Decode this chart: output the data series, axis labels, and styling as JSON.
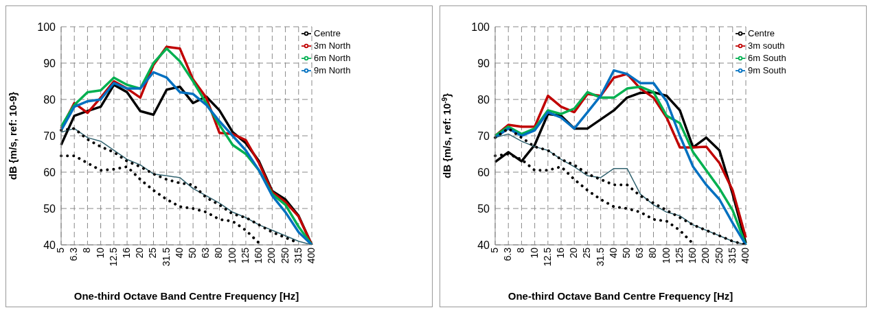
{
  "chart_data": [
    {
      "type": "line",
      "xlabel": "One-third Octave Band Centre Frequency [Hz]",
      "ylabel": "dB {m/s, ref: 10-9}",
      "categories": [
        "5",
        "6.3",
        "8",
        "10",
        "12.5",
        "16",
        "20",
        "25",
        "31.5",
        "40",
        "50",
        "63",
        "80",
        "100",
        "125",
        "160",
        "200",
        "250",
        "315",
        "400"
      ],
      "ylim": [
        40,
        100
      ],
      "yticks": [
        40,
        50,
        60,
        70,
        80,
        90,
        100
      ],
      "grid": true,
      "legend": "top right",
      "marker": "none",
      "series": [
        {
          "name": "Centre",
          "color": "#000000",
          "values": [
            67.5,
            75.5,
            76.8,
            78,
            84,
            82,
            76.8,
            75.8,
            82.7,
            83.5,
            79,
            80.8,
            77,
            71,
            68,
            63,
            54.8,
            52.5,
            48,
            40
          ]
        },
        {
          "name": "3m North",
          "color": "#c00000",
          "values": [
            72,
            79,
            76.3,
            80.5,
            85,
            83,
            80.5,
            89.5,
            94.5,
            94,
            85.5,
            80.5,
            70.8,
            70.5,
            68.8,
            62.5,
            54.5,
            51.8,
            47.8,
            40
          ]
        },
        {
          "name": "6m North",
          "color": "#00b050",
          "values": [
            72.5,
            78.5,
            82,
            82.5,
            86,
            84,
            83,
            90,
            94,
            90.5,
            85,
            79,
            73,
            67.5,
            65,
            60.5,
            54,
            51,
            45,
            40
          ]
        },
        {
          "name": "9m North",
          "color": "#0070c0",
          "values": [
            71.5,
            78,
            79.5,
            80,
            84.5,
            83,
            83,
            87.5,
            86,
            82,
            81.5,
            78.5,
            74,
            70,
            66,
            60.5,
            53.5,
            49,
            43.5,
            40
          ]
        },
        {
          "color": "#31626f",
          "line_style": "solid",
          "values": [
            71,
            72,
            69.5,
            68.5,
            66,
            63.5,
            62,
            59.5,
            59,
            58.5,
            55.5,
            53.5,
            51.5,
            49,
            47.5,
            45.5,
            44,
            42.5,
            41,
            40
          ]
        },
        {
          "color": "#000000",
          "line_style": "dotted",
          "values": [
            71.5,
            72,
            69,
            67,
            65.5,
            63,
            61.5,
            59.5,
            58,
            57,
            56.5,
            53,
            51,
            48.5,
            47.5,
            45.5,
            43.5,
            42,
            40.5,
            null
          ]
        },
        {
          "color": "#000000",
          "line_style": "dotted",
          "values": [
            64.5,
            64.5,
            62.5,
            60.5,
            60.8,
            61.5,
            58,
            55,
            52.5,
            50.5,
            50,
            49,
            47,
            46.5,
            44,
            40.5,
            null,
            null,
            null,
            null
          ]
        }
      ]
    },
    {
      "type": "line",
      "xlabel": "One-third Octave Band Centre Frequency [Hz]",
      "ylabel": "dB {m/s, ref: 10$^{-9}$}",
      "categories": [
        "5",
        "6.3",
        "8",
        "10",
        "12.5",
        "16",
        "20",
        "25",
        "31.5",
        "40",
        "50",
        "63",
        "80",
        "100",
        "125",
        "160",
        "200",
        "250",
        "315",
        "400"
      ],
      "ylim": [
        40,
        100
      ],
      "yticks": [
        40,
        50,
        60,
        70,
        80,
        90,
        100
      ],
      "grid": true,
      "legend": "top right",
      "marker": "none",
      "series": [
        {
          "name": "Centre",
          "color": "#000000",
          "values": [
            62.8,
            65.5,
            63,
            67.5,
            76,
            75.5,
            72,
            72,
            74.5,
            77,
            80.5,
            81.8,
            82,
            81,
            77,
            66.8,
            69.5,
            66,
            54,
            40.5
          ]
        },
        {
          "name": "3m south",
          "color": "#c00000",
          "values": [
            70,
            73,
            72.5,
            72.5,
            81,
            78,
            76.5,
            81.5,
            81,
            86,
            87,
            83,
            80.5,
            75,
            66.8,
            66.8,
            67,
            62.5,
            55,
            42
          ]
        },
        {
          "name": "6m South",
          "color": "#00b050",
          "values": [
            70,
            72.5,
            70.5,
            72,
            77,
            76,
            77.5,
            82,
            80.5,
            80.5,
            83,
            83.5,
            82,
            75.5,
            73.5,
            65.5,
            60.5,
            55.5,
            49.5,
            40
          ]
        },
        {
          "name": "9m South",
          "color": "#0070c0",
          "values": [
            69.5,
            72,
            70,
            71.5,
            76.5,
            75,
            72,
            76.5,
            81,
            88,
            87,
            84.5,
            84.5,
            79.5,
            70,
            61.5,
            56.5,
            52.5,
            46,
            40
          ]
        },
        {
          "color": "#31626f",
          "line_style": "solid",
          "values": [
            69.5,
            70.5,
            68.5,
            67,
            66,
            63.5,
            61.5,
            59,
            58.5,
            61,
            61,
            54,
            51,
            49,
            48,
            45.5,
            44,
            42.5,
            41,
            40
          ]
        },
        {
          "color": "#000000",
          "line_style": "dotted",
          "values": [
            69.5,
            72,
            69.5,
            67,
            66,
            63.5,
            62,
            59.5,
            58,
            56.5,
            56.5,
            53.5,
            51.5,
            49.5,
            47.5,
            45.5,
            44,
            42.5,
            41,
            40
          ]
        },
        {
          "color": "#000000",
          "line_style": "dotted",
          "values": [
            64.5,
            65,
            63.5,
            60.5,
            60.5,
            61.5,
            58,
            55,
            52.5,
            50.5,
            50,
            49,
            47,
            46.5,
            44,
            40.3,
            null,
            null,
            null,
            null
          ]
        }
      ]
    }
  ]
}
